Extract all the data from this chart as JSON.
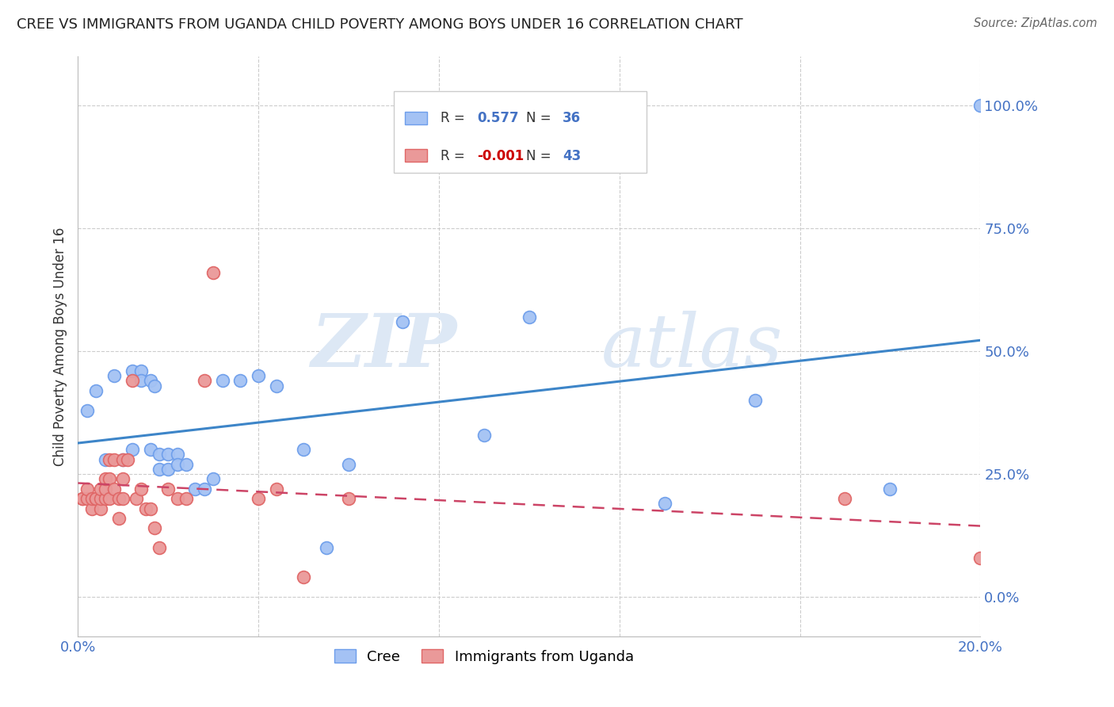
{
  "title": "CREE VS IMMIGRANTS FROM UGANDA CHILD POVERTY AMONG BOYS UNDER 16 CORRELATION CHART",
  "source": "Source: ZipAtlas.com",
  "ylabel": "Child Poverty Among Boys Under 16",
  "xlim": [
    0.0,
    0.2
  ],
  "ylim": [
    -0.08,
    1.1
  ],
  "ytick_vals": [
    0.0,
    0.25,
    0.5,
    0.75,
    1.0
  ],
  "ytick_labels": [
    "0.0%",
    "25.0%",
    "50.0%",
    "75.0%",
    "100.0%"
  ],
  "xtick_vals": [
    0.0,
    0.04,
    0.08,
    0.12,
    0.16,
    0.2
  ],
  "xtick_labels": [
    "0.0%",
    "",
    "",
    "",
    "",
    "20.0%"
  ],
  "cree_R": "0.577",
  "cree_N": "36",
  "uganda_R": "-0.001",
  "uganda_N": "43",
  "cree_color": "#a4c2f4",
  "cree_edge": "#6d9eeb",
  "uganda_color": "#ea9999",
  "uganda_edge": "#e06666",
  "cree_line_color": "#3d85c8",
  "uganda_line_color": "#cc4466",
  "background_color": "#ffffff",
  "grid_color": "#cccccc",
  "watermark_zip": "ZIP",
  "watermark_atlas": "atlas",
  "cree_x": [
    0.002,
    0.004,
    0.006,
    0.008,
    0.01,
    0.012,
    0.012,
    0.014,
    0.014,
    0.016,
    0.016,
    0.017,
    0.018,
    0.018,
    0.02,
    0.02,
    0.022,
    0.022,
    0.024,
    0.026,
    0.028,
    0.03,
    0.032,
    0.036,
    0.04,
    0.044,
    0.05,
    0.055,
    0.06,
    0.072,
    0.09,
    0.1,
    0.13,
    0.15,
    0.18,
    0.2
  ],
  "cree_y": [
    0.38,
    0.42,
    0.28,
    0.45,
    0.28,
    0.3,
    0.46,
    0.46,
    0.44,
    0.44,
    0.3,
    0.43,
    0.26,
    0.29,
    0.26,
    0.29,
    0.29,
    0.27,
    0.27,
    0.22,
    0.22,
    0.24,
    0.44,
    0.44,
    0.45,
    0.43,
    0.3,
    0.1,
    0.27,
    0.56,
    0.33,
    0.57,
    0.19,
    0.4,
    0.22,
    1.0
  ],
  "uganda_x": [
    0.001,
    0.001,
    0.002,
    0.002,
    0.003,
    0.003,
    0.004,
    0.004,
    0.005,
    0.005,
    0.005,
    0.006,
    0.006,
    0.006,
    0.007,
    0.007,
    0.007,
    0.008,
    0.008,
    0.009,
    0.009,
    0.01,
    0.01,
    0.01,
    0.011,
    0.012,
    0.013,
    0.014,
    0.015,
    0.016,
    0.017,
    0.018,
    0.02,
    0.022,
    0.024,
    0.028,
    0.03,
    0.04,
    0.044,
    0.05,
    0.06,
    0.17,
    0.2
  ],
  "uganda_y": [
    0.2,
    0.2,
    0.2,
    0.22,
    0.18,
    0.2,
    0.2,
    0.2,
    0.18,
    0.2,
    0.22,
    0.2,
    0.22,
    0.24,
    0.2,
    0.24,
    0.28,
    0.22,
    0.28,
    0.16,
    0.2,
    0.2,
    0.24,
    0.28,
    0.28,
    0.44,
    0.2,
    0.22,
    0.18,
    0.18,
    0.14,
    0.1,
    0.22,
    0.2,
    0.2,
    0.44,
    0.66,
    0.2,
    0.22,
    0.04,
    0.2,
    0.2,
    0.08
  ]
}
